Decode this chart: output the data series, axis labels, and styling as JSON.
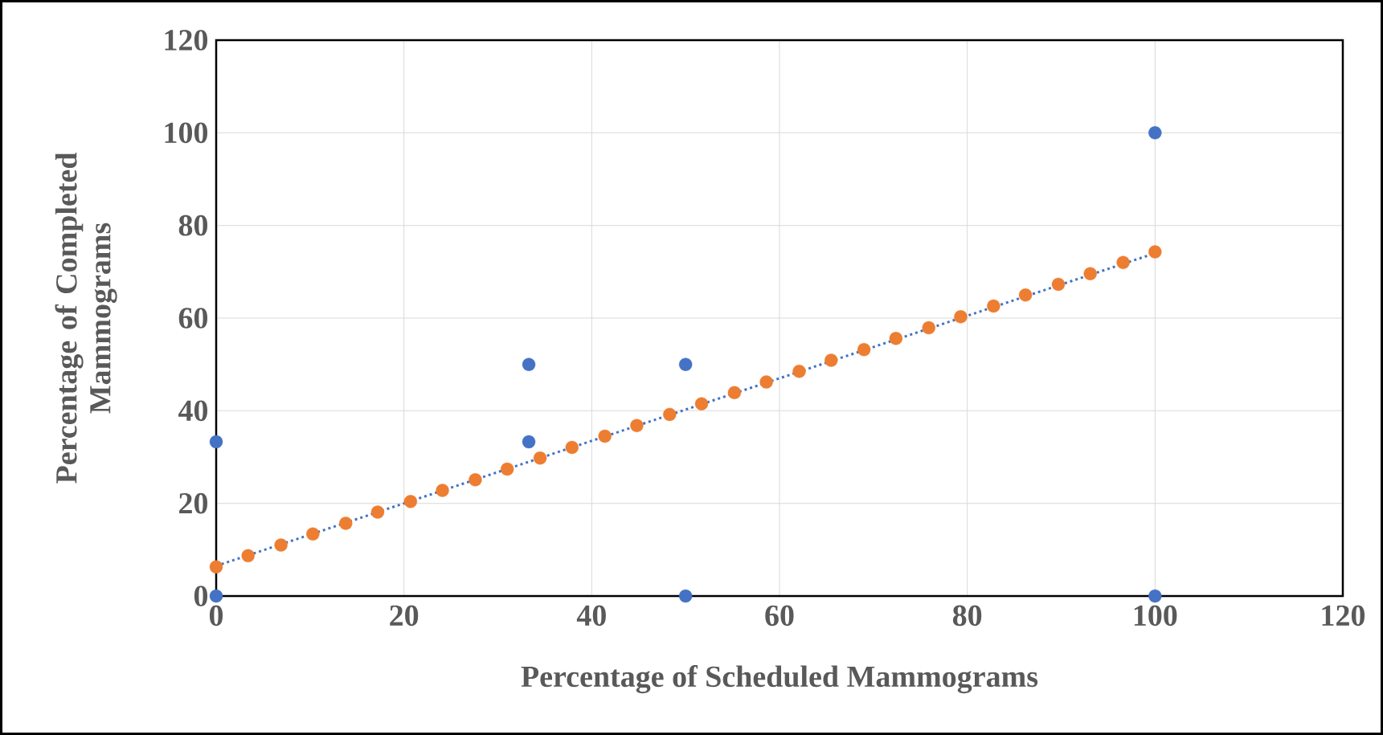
{
  "chart_data": {
    "type": "scatter",
    "xlabel": "Percentage of Scheduled Mammograms",
    "ylabel": "Percentage of Completed Mammograms",
    "xlim": [
      0,
      120
    ],
    "ylim": [
      0,
      120
    ],
    "xticks": [
      0,
      20,
      40,
      60,
      80,
      100,
      120
    ],
    "yticks": [
      0,
      20,
      40,
      60,
      80,
      100,
      120
    ],
    "grid": true,
    "series": [
      {
        "type": "line",
        "color": "#4472c4",
        "x": [
          0,
          100
        ],
        "values": [
          6.5,
          74.0
        ],
        "marker": "none",
        "line_style": "dotted"
      },
      {
        "color": "#ed7d31",
        "marker": "circle",
        "x": [
          0,
          3.4,
          6.9,
          10.3,
          13.8,
          17.2,
          20.7,
          24.1,
          27.6,
          31.0,
          34.5,
          37.9,
          41.4,
          44.8,
          48.3,
          51.7,
          55.2,
          58.6,
          62.1,
          65.5,
          69.0,
          72.4,
          75.9,
          79.3,
          82.8,
          86.2,
          89.7,
          93.1,
          96.6,
          100
        ],
        "values": [
          6.3,
          8.7,
          11.0,
          13.4,
          15.7,
          18.1,
          20.4,
          22.8,
          25.1,
          27.4,
          29.8,
          32.1,
          34.5,
          36.8,
          39.2,
          41.5,
          43.9,
          46.2,
          48.5,
          50.9,
          53.2,
          55.6,
          57.9,
          60.3,
          62.6,
          65.0,
          67.3,
          69.6,
          72.0,
          74.3
        ]
      },
      {
        "color": "#4472c4",
        "marker": "circle",
        "x": [
          0,
          0,
          33.3,
          33.3,
          50,
          50,
          100,
          100
        ],
        "values": [
          0,
          33.3,
          33.3,
          50,
          50,
          0,
          100,
          0
        ]
      }
    ]
  }
}
